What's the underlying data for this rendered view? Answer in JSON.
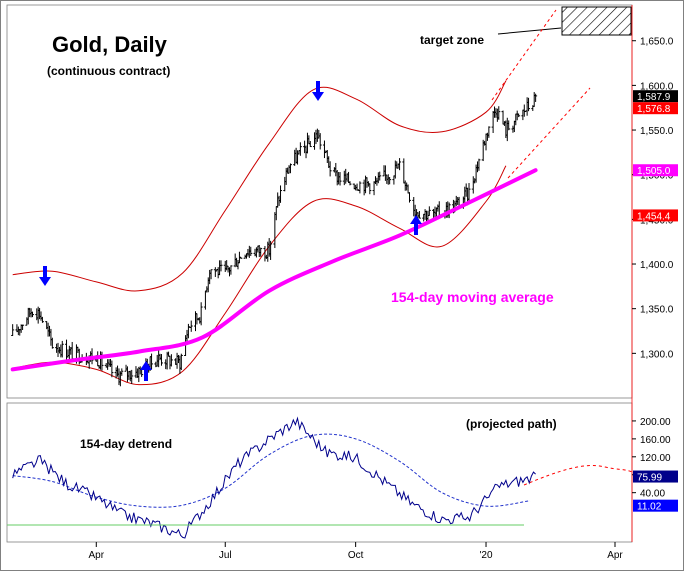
{
  "chart_data": [
    {
      "type": "line",
      "panel": "price",
      "title": "Gold, Daily",
      "subtitle": "(continuous contract)",
      "ylim": [
        1250,
        1690
      ],
      "y_scale_position": "right",
      "y_ticks": [
        {
          "value": 1300,
          "label": "1,300.0"
        },
        {
          "value": 1350,
          "label": "1,350.0"
        },
        {
          "value": 1400,
          "label": "1,400.0"
        },
        {
          "value": 1450,
          "label": "1,450.0"
        },
        {
          "value": 1500,
          "label": "1,500.0"
        },
        {
          "value": 1550,
          "label": "1,550.0"
        },
        {
          "value": 1600,
          "label": "1,600.0"
        },
        {
          "value": 1650,
          "label": "1,650.0"
        }
      ],
      "price_tags": [
        {
          "value": 1587.9,
          "label": "1,587.9",
          "bg": "#000000",
          "fg": "#ffffff"
        },
        {
          "value": 1576.8,
          "label": "1,576.8",
          "bg": "#ff0000",
          "fg": "#ffffff"
        },
        {
          "value": 1505.0,
          "label": "1,505.0",
          "bg": "#ff00ff",
          "fg": "#ffffff"
        },
        {
          "value": 1454.4,
          "label": "1,454.4",
          "bg": "#ff0000",
          "fg": "#ffffff"
        }
      ],
      "series": [
        {
          "name": "Gold",
          "kind": "ohlc",
          "color": "#000000",
          "x": [
            "2019-02-01",
            "2019-02-15",
            "2019-02-20",
            "2019-03-01",
            "2019-03-15",
            "2019-04-01",
            "2019-04-15",
            "2019-05-01",
            "2019-05-15",
            "2019-05-30",
            "2019-06-05",
            "2019-06-14",
            "2019-06-20",
            "2019-07-01",
            "2019-07-15",
            "2019-08-01",
            "2019-08-07",
            "2019-08-15",
            "2019-09-04",
            "2019-09-15",
            "2019-10-01",
            "2019-10-15",
            "2019-11-01",
            "2019-11-12",
            "2019-11-25",
            "2019-12-10",
            "2019-12-20",
            "2020-01-03",
            "2020-01-08",
            "2020-01-15",
            "2020-01-30",
            "2020-02-05"
          ],
          "values": [
            1320,
            1350,
            1345,
            1310,
            1300,
            1295,
            1275,
            1280,
            1295,
            1290,
            1330,
            1345,
            1395,
            1390,
            1415,
            1415,
            1470,
            1510,
            1545,
            1500,
            1490,
            1490,
            1510,
            1460,
            1455,
            1465,
            1480,
            1555,
            1575,
            1550,
            1575,
            1585
          ]
        },
        {
          "name": "154-day moving average",
          "color": "#ff00ff",
          "x": [
            "2019-02-01",
            "2019-03-15",
            "2019-05-01",
            "2019-06-15",
            "2019-08-01",
            "2019-09-15",
            "2019-11-01",
            "2019-12-15",
            "2020-02-05"
          ],
          "values": [
            1282,
            1292,
            1302,
            1318,
            1370,
            1403,
            1432,
            1465,
            1505
          ]
        },
        {
          "name": "Upper band",
          "color": "#cc0000",
          "x": [
            "2019-02-01",
            "2019-03-01",
            "2019-04-01",
            "2019-05-01",
            "2019-06-01",
            "2019-07-01",
            "2019-08-01",
            "2019-09-01",
            "2019-10-01",
            "2019-11-01",
            "2019-12-01",
            "2020-01-01",
            "2020-01-15"
          ],
          "values": [
            1388,
            1392,
            1380,
            1370,
            1390,
            1460,
            1535,
            1595,
            1585,
            1555,
            1548,
            1570,
            1605
          ]
        },
        {
          "name": "Lower band",
          "color": "#cc0000",
          "x": [
            "2019-02-01",
            "2019-03-01",
            "2019-04-01",
            "2019-05-01",
            "2019-06-01",
            "2019-07-01",
            "2019-08-01",
            "2019-09-01",
            "2019-10-01",
            "2019-11-01",
            "2019-12-01",
            "2020-01-01",
            "2020-01-15"
          ],
          "values": [
            1283,
            1290,
            1282,
            1265,
            1280,
            1345,
            1420,
            1470,
            1465,
            1440,
            1420,
            1470,
            1510
          ]
        }
      ],
      "annotations": [
        {
          "text": "target zone",
          "x": "2020-03-01",
          "y": 1651
        },
        {
          "text": "154-day moving average",
          "x": "2019-11-10",
          "y": 1372,
          "color": "#ff00ff"
        },
        {
          "text": "(projected path)",
          "x": "2020-01-10",
          "y": null
        }
      ]
    },
    {
      "type": "line",
      "panel": "detrend",
      "title": "154-day detrend",
      "ylim": [
        -70,
        240
      ],
      "y_ticks": [
        {
          "value": 40,
          "label": "40.00"
        },
        {
          "value": 80,
          "label": "80.00"
        },
        {
          "value": 120,
          "label": "120.00"
        },
        {
          "value": 160,
          "label": "160.00"
        },
        {
          "value": 200,
          "label": "200.00"
        }
      ],
      "price_tags": [
        {
          "value": 75.99,
          "label": "75.99",
          "bg": "#00008b",
          "fg": "#ffffff"
        },
        {
          "value": 11.02,
          "label": "11.02",
          "bg": "#0000ff",
          "fg": "#ffffff"
        }
      ],
      "series": [
        {
          "name": "154-day detrend",
          "color": "#00008b",
          "x": [
            "2019-02-01",
            "2019-02-20",
            "2019-03-10",
            "2019-04-01",
            "2019-04-20",
            "2019-05-10",
            "2019-06-01",
            "2019-06-20",
            "2019-07-10",
            "2019-08-01",
            "2019-08-20",
            "2019-09-10",
            "2019-10-01",
            "2019-10-20",
            "2019-11-10",
            "2019-12-01",
            "2019-12-20",
            "2020-01-10",
            "2020-02-05"
          ],
          "values": [
            80,
            112,
            62,
            28,
            -10,
            -28,
            -55,
            20,
            105,
            160,
            200,
            130,
            118,
            68,
            15,
            -20,
            -15,
            55,
            75
          ]
        },
        {
          "name": "Cycle",
          "color": "#2233cc",
          "dashed": true,
          "x": [
            "2019-02-01",
            "2019-03-01",
            "2019-04-01",
            "2019-05-01",
            "2019-06-01",
            "2019-07-01",
            "2019-08-01",
            "2019-09-01",
            "2019-10-01",
            "2019-11-01",
            "2019-12-01",
            "2020-01-01",
            "2020-02-01"
          ],
          "values": [
            78,
            65,
            30,
            10,
            12,
            50,
            125,
            168,
            160,
            110,
            40,
            10,
            22
          ]
        }
      ]
    }
  ],
  "x_axis": {
    "range": [
      "2019-01-28",
      "2020-04-13"
    ],
    "ticks": [
      {
        "x": "2019-04-01",
        "label": "Apr"
      },
      {
        "x": "2019-07-01",
        "label": "Jul"
      },
      {
        "x": "2019-10-01",
        "label": "Oct"
      },
      {
        "x": "2020-01-01",
        "label": "'20"
      },
      {
        "x": "2020-04-01",
        "label": "Apr"
      }
    ]
  }
}
